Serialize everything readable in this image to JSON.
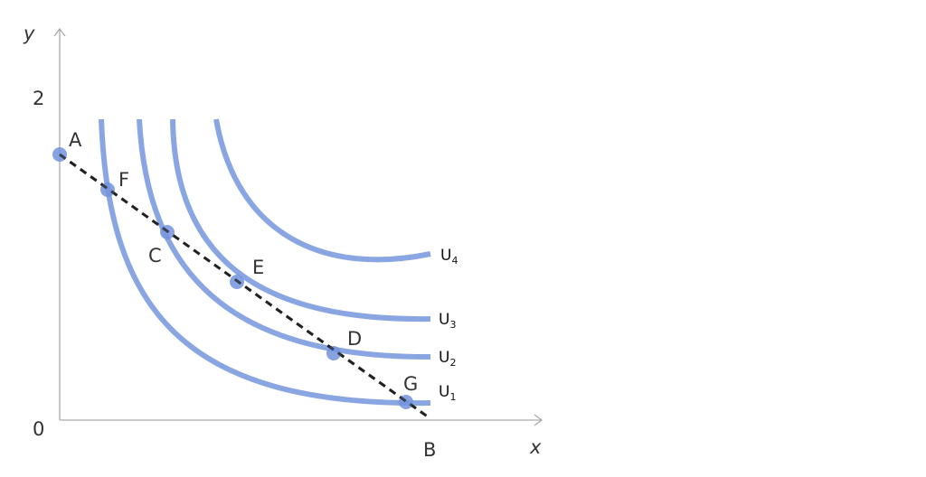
{
  "axes": {
    "x_label": "x",
    "y_label": "y",
    "origin_label": "0",
    "y_tick_label": "2",
    "x_intercept_label": "B"
  },
  "curves": [
    {
      "label": "U",
      "subscript": "1"
    },
    {
      "label": "U",
      "subscript": "2"
    },
    {
      "label": "U",
      "subscript": "3"
    },
    {
      "label": "U",
      "subscript": "4"
    }
  ],
  "points": {
    "A": "A",
    "F": "F",
    "C": "C",
    "E": "E",
    "D": "D",
    "G": "G"
  },
  "colors": {
    "curve": "#8aa6e2",
    "point": "#7393dc",
    "budget_line": "#222222",
    "axis": "#aaaaaa",
    "text": "#333333"
  }
}
